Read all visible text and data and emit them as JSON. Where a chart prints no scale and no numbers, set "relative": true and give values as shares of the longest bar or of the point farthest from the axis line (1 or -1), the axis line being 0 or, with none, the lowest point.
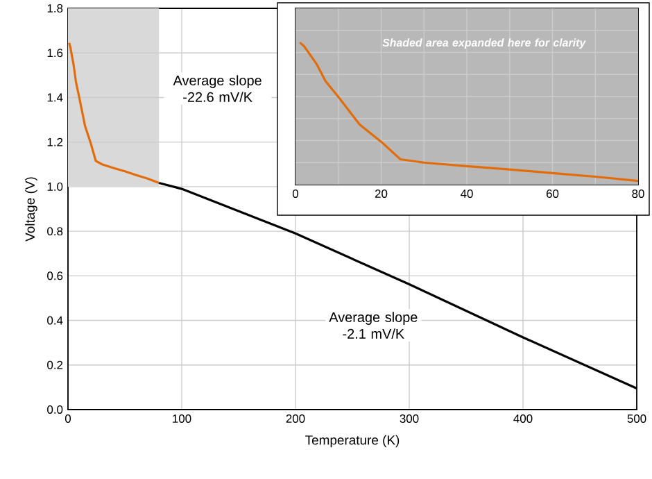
{
  "chart_data": [
    {
      "type": "line",
      "xlabel": "Temperature (K)",
      "ylabel": "Voltage (V)",
      "xlim": [
        0,
        500
      ],
      "ylim": [
        0,
        1.8
      ],
      "xticks": [
        0,
        100,
        200,
        300,
        400,
        500
      ],
      "yticks": [
        {
          "value": 0,
          "label": "0.0"
        },
        0.2,
        0.4,
        0.6,
        0.8,
        {
          "value": 1,
          "label": "1.0"
        },
        1.2,
        1.4,
        1.6,
        1.8
      ],
      "grid": true,
      "series": [
        {
          "color": "#e36c0a",
          "x": [
            1,
            2,
            5,
            7,
            10,
            15,
            20,
            24.5,
            30,
            40,
            50,
            60,
            70,
            80
          ],
          "values": [
            1.645,
            1.628,
            1.545,
            1.47,
            1.398,
            1.272,
            1.195,
            1.115,
            1.1,
            1.084,
            1.069,
            1.052,
            1.036,
            1.017
          ]
        },
        {
          "color": "#000000",
          "x": [
            80,
            100,
            200,
            300,
            400,
            500
          ],
          "values": [
            1.017,
            0.99,
            0.79,
            0.562,
            0.324,
            0.095
          ]
        }
      ],
      "bands": [
        {
          "axis": "x",
          "from": 0,
          "to": 80,
          "color": "#d9d9d9"
        }
      ],
      "annotations": [
        "Average slope -22.6 mV/K",
        "Average slope -2.1 mV/K"
      ]
    },
    {
      "type": "line",
      "xlim": [
        0,
        80
      ],
      "relative": true,
      "xticks": [
        0,
        {
          "value": 10,
          "label": null
        },
        20,
        {
          "value": 30,
          "label": null
        },
        40,
        {
          "value": 50,
          "label": null
        },
        60,
        {
          "value": 70,
          "label": null
        },
        80
      ],
      "tick_labels": "x",
      "grid": true,
      "series": [
        {
          "color": "#e36c0a",
          "x": [
            1,
            2,
            5,
            7,
            10,
            15,
            20,
            24.5,
            30,
            40,
            50,
            60,
            70,
            80
          ],
          "values": [
            1,
            0.974,
            0.845,
            0.729,
            0.617,
            0.422,
            0.302,
            0.178,
            0.155,
            0.13,
            0.107,
            0.081,
            0.056,
            0.026
          ]
        }
      ],
      "bands": [
        {
          "axis": "x",
          "from": 0,
          "to": 80,
          "color": "#b8b8b8"
        }
      ],
      "annotations": [
        "Shaded area expanded here for clarity"
      ]
    }
  ]
}
